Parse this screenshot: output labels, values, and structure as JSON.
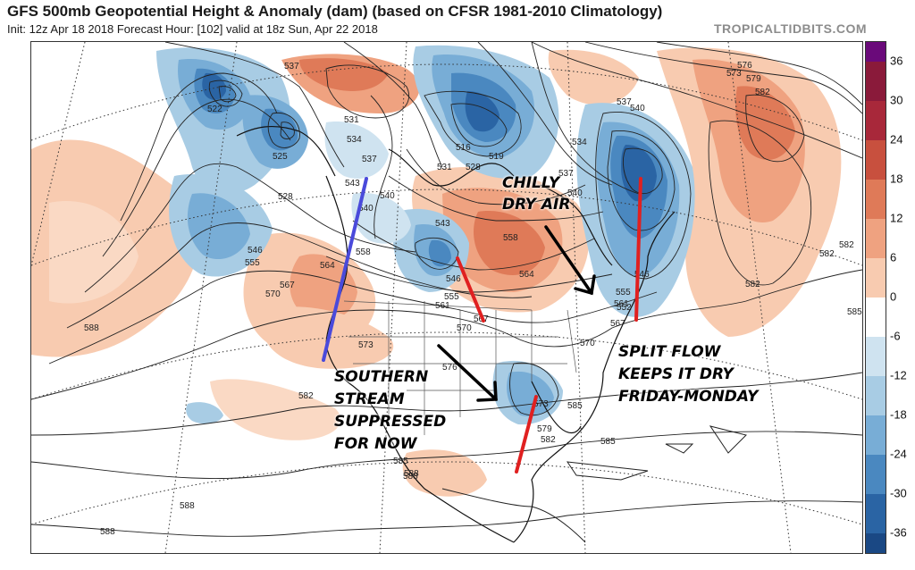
{
  "header": {
    "title": "GFS 500mb Geopotential Height & Anomaly (dam) (based on CFSR 1981-2010 Climatology)",
    "subtitle": "Init: 12z Apr 18 2018   Forecast Hour: [102]   valid at 18z Sun, Apr 22 2018",
    "brand": "TROPICALTIDBITS.COM"
  },
  "colorbar": {
    "ticks": [
      "36",
      "30",
      "24",
      "18",
      "12",
      "6",
      "0",
      "-6",
      "-12",
      "-18",
      "-24",
      "-30",
      "-36"
    ],
    "colors": [
      "#6a0a7a",
      "#8a1a3a",
      "#a8283a",
      "#c8503e",
      "#df7a58",
      "#efa280",
      "#f8cbb0",
      "#ffffff",
      "#cfe3f0",
      "#a8cce4",
      "#78add6",
      "#4a88c0",
      "#2a64a4",
      "#1a4884",
      "#0e2c60"
    ]
  },
  "map": {
    "height_labels": [
      "537",
      "522",
      "531",
      "534",
      "525",
      "528",
      "537",
      "543",
      "540",
      "540",
      "546",
      "555",
      "564",
      "558",
      "567",
      "570",
      "573",
      "576",
      "531",
      "528",
      "516",
      "519",
      "537",
      "534",
      "540",
      "546",
      "555",
      "564",
      "558",
      "567",
      "570",
      "561",
      "555",
      "546",
      "543",
      "540",
      "537",
      "552",
      "561",
      "567",
      "570",
      "573",
      "579",
      "582",
      "585",
      "588",
      "588",
      "588",
      "588",
      "582",
      "582",
      "582",
      "585",
      "573",
      "576",
      "579",
      "582",
      "585",
      "588",
      "585",
      "582"
    ]
  },
  "annotations": {
    "chilly": [
      "CHILLY",
      "DRY AIR"
    ],
    "southern": [
      "SOUTHERN",
      "STREAM",
      "SUPPRESSED",
      "FOR NOW"
    ],
    "split": [
      "SPLIT FLOW",
      "KEEPS IT DRY",
      "FRIDAY-MONDAY"
    ]
  }
}
